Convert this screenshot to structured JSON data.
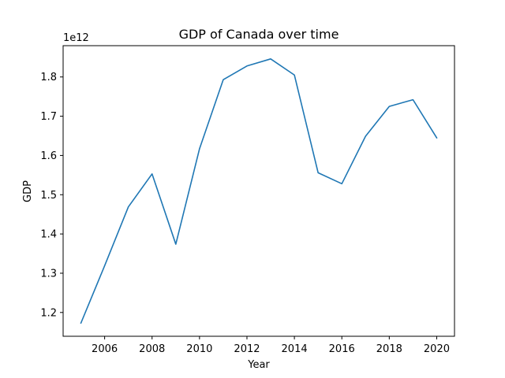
{
  "chart_data": {
    "type": "line",
    "title": "GDP of Canada over time",
    "xlabel": "Year",
    "ylabel": "GDP",
    "y_offset_label": "1e12",
    "x": [
      2005,
      2006,
      2007,
      2008,
      2009,
      2010,
      2011,
      2012,
      2013,
      2014,
      2015,
      2016,
      2017,
      2018,
      2019,
      2020
    ],
    "series": [
      {
        "values": [
          1173000000000.0,
          1319000000000.0,
          1469000000000.0,
          1553000000000.0,
          1374000000000.0,
          1617000000000.0,
          1793000000000.0,
          1828000000000.0,
          1846000000000.0,
          1805000000000.0,
          1556000000000.0,
          1528000000000.0,
          1649000000000.0,
          1725000000000.0,
          1742000000000.0,
          1645000000000.0
        ],
        "color": "#1f77b4"
      }
    ],
    "xlim": [
      2004.25,
      2020.75
    ],
    "ylim": [
      1139400000000.0,
      1879700000000.0
    ],
    "x_ticks": [
      2006,
      2008,
      2010,
      2012,
      2014,
      2016,
      2018,
      2020
    ],
    "x_tick_labels": [
      "2006",
      "2008",
      "2010",
      "2012",
      "2014",
      "2016",
      "2018",
      "2020"
    ],
    "y_ticks": [
      1200000000000.0,
      1300000000000.0,
      1400000000000.0,
      1500000000000.0,
      1600000000000.0,
      1700000000000.0,
      1800000000000.0
    ],
    "y_tick_labels": [
      "1.2",
      "1.3",
      "1.4",
      "1.5",
      "1.6",
      "1.7",
      "1.8"
    ],
    "grid": false,
    "legend": "none"
  }
}
